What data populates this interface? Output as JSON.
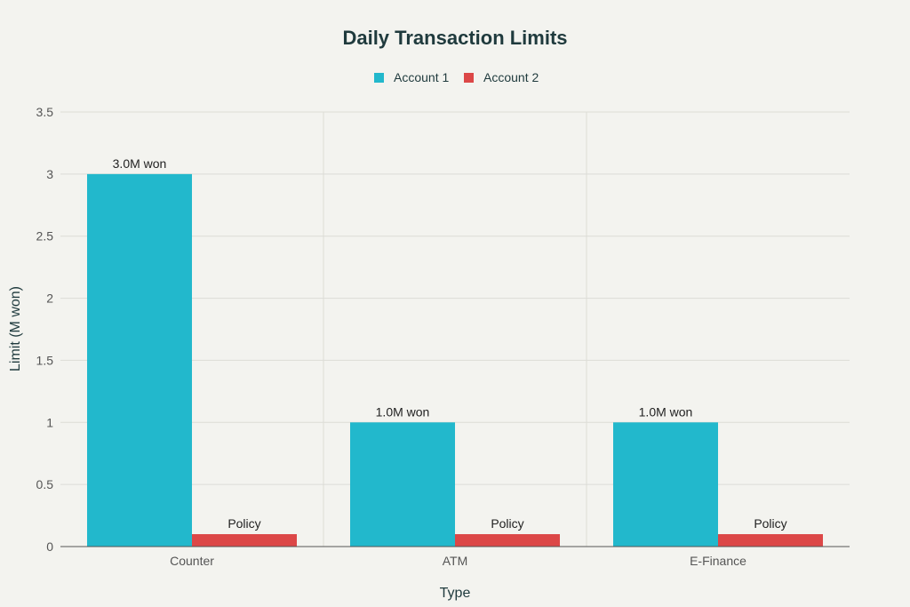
{
  "chart_data": {
    "type": "bar",
    "title": "Daily Transaction Limits",
    "xlabel": "Type",
    "ylabel": "Limit (M won)",
    "categories": [
      "Counter",
      "ATM",
      "E-Finance"
    ],
    "series": [
      {
        "name": "Account 1",
        "color": "#22b8cc",
        "values": [
          3.0,
          1.0,
          1.0
        ],
        "labels": [
          "3.0M won",
          "1.0M won",
          "1.0M won"
        ]
      },
      {
        "name": "Account 2",
        "color": "#dc4747",
        "values": [
          0.1,
          0.1,
          0.1
        ],
        "labels": [
          "Policy",
          "Policy",
          "Policy"
        ]
      }
    ],
    "ylim": [
      0,
      3.5
    ],
    "yticks": [
      "0",
      "0.5",
      "1",
      "1.5",
      "2",
      "2.5",
      "3",
      "3.5"
    ],
    "ytick_values": [
      0,
      0.5,
      1,
      1.5,
      2,
      2.5,
      3,
      3.5
    ],
    "grid": true,
    "legend_position": "top-center"
  }
}
